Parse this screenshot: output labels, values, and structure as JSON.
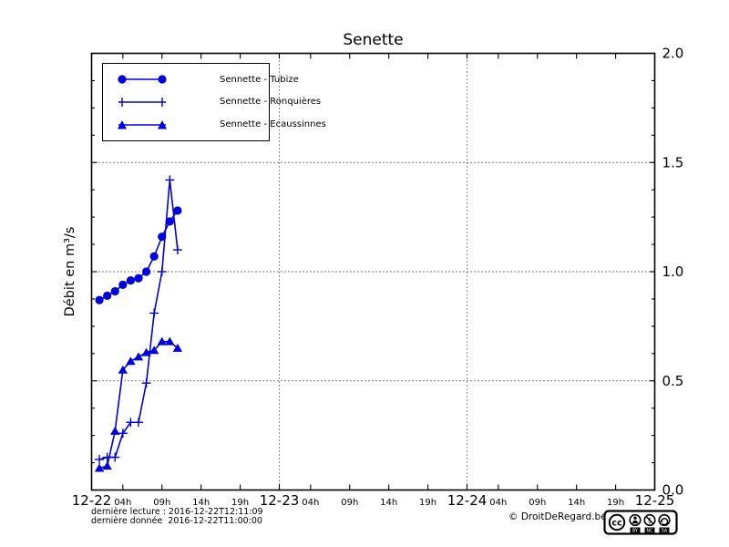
{
  "chart": {
    "title": "Senette",
    "ylabel": "Débit en m³/s"
  },
  "chart_data": {
    "type": "line",
    "title": "Senette",
    "xlabel": "",
    "ylabel": "Débit en m³/s",
    "ylim": [
      0.0,
      2.0
    ],
    "xlim_hours": [
      0,
      72
    ],
    "x_unit": "hours after 2016-12-22 00:00",
    "line_color": "#0000dd",
    "grid": {
      "on": true,
      "style": "dotted",
      "x_hours": [
        24,
        48
      ],
      "y_values": [
        0.5,
        1.0,
        1.5
      ]
    },
    "legend_position": "upper left",
    "y_ticks": [
      {
        "value": 0.0,
        "label": "0.0"
      },
      {
        "value": 0.5,
        "label": "0.5"
      },
      {
        "value": 1.0,
        "label": "1.0"
      },
      {
        "value": 1.5,
        "label": "1.5"
      },
      {
        "value": 2.0,
        "label": "2.0"
      }
    ],
    "y_minor_step": 0.125,
    "x_ticks": [
      {
        "pos": 0,
        "label": "12-22",
        "major": true
      },
      {
        "pos": 4,
        "label": "04h"
      },
      {
        "pos": 9,
        "label": "09h"
      },
      {
        "pos": 14,
        "label": "14h"
      },
      {
        "pos": 19,
        "label": "19h"
      },
      {
        "pos": 24,
        "label": "12-23",
        "major": true
      },
      {
        "pos": 28,
        "label": "04h"
      },
      {
        "pos": 33,
        "label": "09h"
      },
      {
        "pos": 38,
        "label": "14h"
      },
      {
        "pos": 43,
        "label": "19h"
      },
      {
        "pos": 48,
        "label": "12-24",
        "major": true
      },
      {
        "pos": 52,
        "label": "04h"
      },
      {
        "pos": 57,
        "label": "09h"
      },
      {
        "pos": 62,
        "label": "14h"
      },
      {
        "pos": 67,
        "label": "19h"
      },
      {
        "pos": 72,
        "label": "12-25",
        "major": true
      }
    ],
    "series": [
      {
        "name": "Sennette - Tubize",
        "marker": "circle",
        "x": [
          1,
          2,
          3,
          4,
          5,
          6,
          7,
          8,
          9,
          10,
          11
        ],
        "y": [
          0.87,
          0.89,
          0.91,
          0.94,
          0.96,
          0.97,
          1.0,
          1.07,
          1.16,
          1.23,
          1.28
        ]
      },
      {
        "name": "Sennette - Ronquières",
        "marker": "plus",
        "x": [
          1,
          2,
          3,
          4,
          5,
          6,
          7,
          8,
          9,
          10,
          11
        ],
        "y": [
          0.14,
          0.15,
          0.15,
          0.26,
          0.31,
          0.31,
          0.49,
          0.81,
          1.0,
          1.42,
          1.1
        ]
      },
      {
        "name": "Sennette - Ecaussinnes",
        "marker": "triangle",
        "x": [
          1,
          2,
          3,
          4,
          5,
          6,
          7,
          8,
          9,
          10,
          11
        ],
        "y": [
          0.1,
          0.11,
          0.27,
          0.55,
          0.59,
          0.61,
          0.63,
          0.64,
          0.68,
          0.68,
          0.65
        ]
      }
    ]
  },
  "footer": {
    "last_read": "dernière lecture : 2016-12-22T12:11:09",
    "last_data": "dernière donnée  2016-12-22T11:00:00",
    "copyright": "© DroitDeRegard.be",
    "license": {
      "cc_label": "cc",
      "labels": [
        "BY",
        "NC",
        "SA"
      ]
    }
  }
}
